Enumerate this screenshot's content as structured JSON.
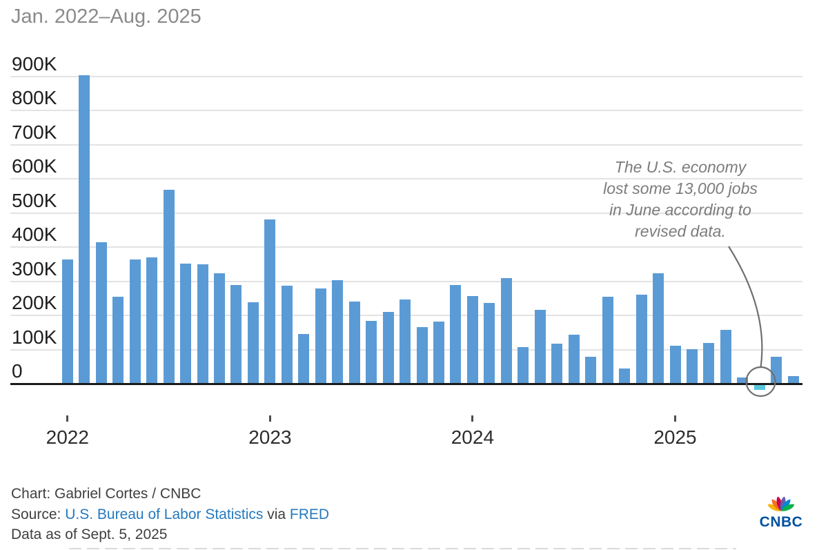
{
  "title": "Jan. 2022–Aug. 2025",
  "chart_data": {
    "type": "bar",
    "title": "Jan. 2022–Aug. 2025",
    "unit": "thousands of jobs (K)",
    "x": [
      "Jan 2022",
      "Feb 2022",
      "Mar 2022",
      "Apr 2022",
      "May 2022",
      "Jun 2022",
      "Jul 2022",
      "Aug 2022",
      "Sep 2022",
      "Oct 2022",
      "Nov 2022",
      "Dec 2022",
      "Jan 2023",
      "Feb 2023",
      "Mar 2023",
      "Apr 2023",
      "May 2023",
      "Jun 2023",
      "Jul 2023",
      "Aug 2023",
      "Sep 2023",
      "Oct 2023",
      "Nov 2023",
      "Dec 2023",
      "Jan 2024",
      "Feb 2024",
      "Mar 2024",
      "Apr 2024",
      "May 2024",
      "Jun 2024",
      "Jul 2024",
      "Aug 2024",
      "Sep 2024",
      "Oct 2024",
      "Nov 2024",
      "Dec 2024",
      "Jan 2025",
      "Feb 2025",
      "Mar 2025",
      "Apr 2025",
      "May 2025",
      "Jun 2025",
      "Jul 2025",
      "Aug 2025"
    ],
    "values": [
      364,
      904,
      414,
      254,
      364,
      370,
      568,
      352,
      350,
      324,
      290,
      239,
      482,
      287,
      146,
      278,
      303,
      240,
      184,
      210,
      246,
      165,
      182,
      290,
      256,
      236,
      310,
      108,
      216,
      118,
      144,
      78,
      255,
      44,
      261,
      323,
      111,
      102,
      120,
      158,
      19,
      -13,
      79,
      22
    ],
    "ylim": [
      0,
      900
    ],
    "ytick_values": [
      0,
      100,
      200,
      300,
      400,
      500,
      600,
      700,
      800,
      900
    ],
    "ytick_labels": [
      "0",
      "100K",
      "200K",
      "300K",
      "400K",
      "500K",
      "600K",
      "700K",
      "800K",
      "900K"
    ],
    "xticks": [
      {
        "label": "2022",
        "index": 0
      },
      {
        "label": "2023",
        "index": 12
      },
      {
        "label": "2024",
        "index": 24
      },
      {
        "label": "2025",
        "index": 36
      }
    ],
    "bar_color": "#5b9bd5",
    "highlight": {
      "index": 41,
      "month": "Jun 2025",
      "value": -13,
      "color": "#58c7dc"
    },
    "grid": true,
    "legend": "none"
  },
  "annotation": {
    "lines": [
      "The U.S. economy",
      "lost some 13,000 jobs",
      "in June according to",
      "revised data."
    ]
  },
  "footer": {
    "credit": "Chart: Gabriel Cortes / CNBC",
    "source_label": "Source:",
    "source_link_bls": "U.S. Bureau of Labor Statistics",
    "source_via": "via",
    "source_link_fred": "FRED",
    "data_as_of": "Data as of Sept. 5, 2025"
  },
  "logo": {
    "text": "CNBC",
    "peacock_colors": [
      "#f5b50a",
      "#f37021",
      "#cc004c",
      "#6460aa",
      "#0089d0",
      "#0db14b"
    ]
  }
}
